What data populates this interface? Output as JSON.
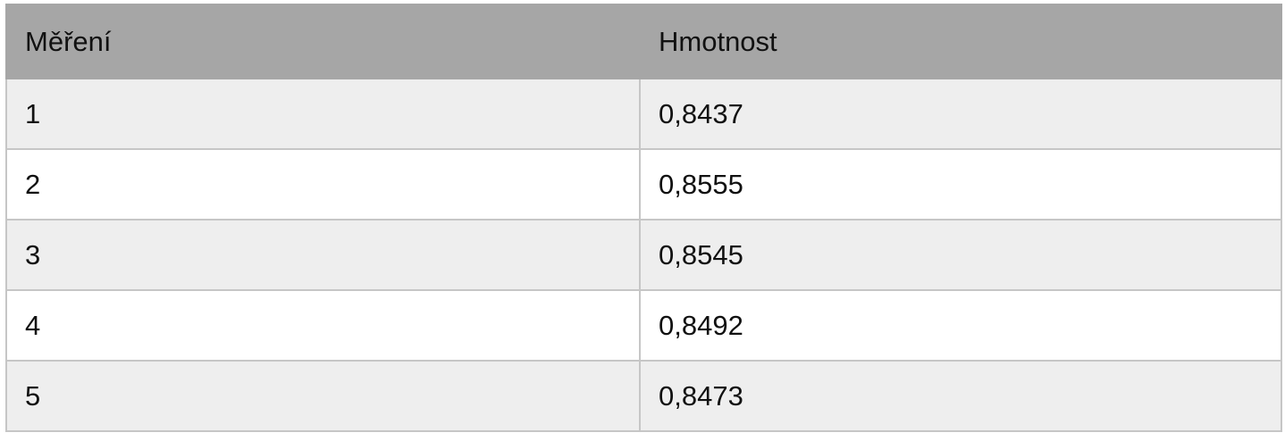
{
  "table": {
    "headers": [
      "Měření",
      "Hmotnost"
    ],
    "rows": [
      [
        "1",
        "0,8437"
      ],
      [
        "2",
        "0,8555"
      ],
      [
        "3",
        "0,8545"
      ],
      [
        "4",
        "0,8492"
      ],
      [
        "5",
        "0,8473"
      ]
    ]
  },
  "colors": {
    "header_bg": "#a6a6a6",
    "row_shade": "#eeeeee",
    "row_plain": "#ffffff",
    "grid": "#c6c6c6"
  }
}
